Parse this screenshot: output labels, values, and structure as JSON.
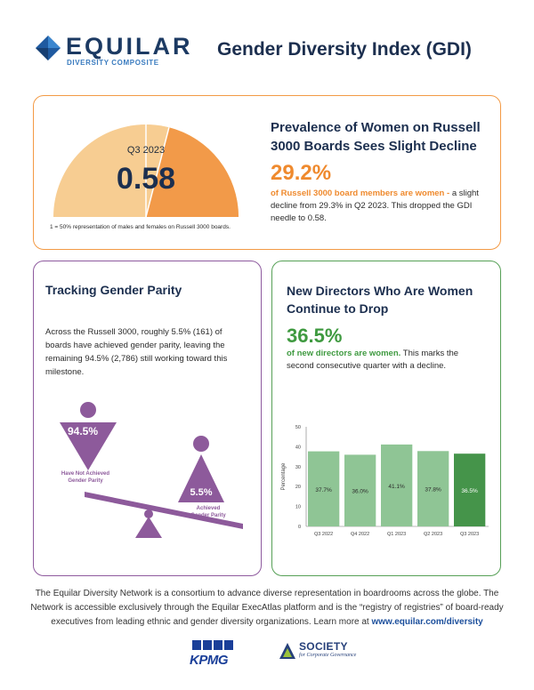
{
  "header": {
    "logo_word": "EQUILAR",
    "logo_sub": "DIVERSITY COMPOSITE",
    "title": "Gender Diversity Index  (GDI)"
  },
  "gdi": {
    "quarter": "Q3 2023",
    "value": "0.58",
    "gauge_fraction": 0.58,
    "caption": "1 = 50% representation of males and females on Russell 3000 boards.",
    "heading": "Prevalence of Women on Russell 3000 Boards Sees Slight Decline",
    "percent": "29.2%",
    "highlight": "of Russell 3000 board members are women",
    "dash": " -",
    "body": "a slight decline from 29.3% in Q2 2023. This dropped the GDI needle to 0.58.",
    "colors": {
      "dark": "#f29a49",
      "light": "#f7cd92"
    }
  },
  "parity": {
    "heading": "Tracking Gender Parity",
    "body": "Across the Russell 3000, roughly 5.5% (161) of boards have achieved gender parity, leaving the remaining 94.5% (2,786) still working toward this milestone.",
    "not_achieved_pct": "94.5%",
    "not_achieved_label_1": "Have Not Achieved",
    "not_achieved_label_2": "Gender Parity",
    "achieved_pct": "5.5%",
    "achieved_label_1": "Achieved",
    "achieved_label_2": "Gender Parity",
    "colors": {
      "purple": "#8d5a9b"
    }
  },
  "new_directors": {
    "heading": "New Directors Who Are Women Continue to Drop",
    "percent": "36.5%",
    "highlight": "of new directors are women.",
    "body": " This marks the second consecutive quarter with a decline."
  },
  "chart_data": {
    "type": "bar",
    "categories": [
      "Q3 2022",
      "Q4 2022",
      "Q1 2023",
      "Q2 2023",
      "Q3 2023"
    ],
    "values": [
      37.7,
      36.0,
      41.1,
      37.8,
      36.5
    ],
    "value_labels": [
      "37.7%",
      "36.0%",
      "41.1%",
      "37.8%",
      "36.5%"
    ],
    "ylabel": "Percentage",
    "ylim": [
      0,
      50
    ],
    "yticks": [
      0,
      10,
      20,
      30,
      40,
      50
    ],
    "colors": {
      "bar": "#8fc595",
      "highlight": "#45944a"
    },
    "grid": false
  },
  "footer": {
    "text": "The Equilar Diversity Network is a consortium to advance diverse representation in boardrooms across the globe. The Network is accessible exclusively through the Equilar ExecAtlas platform and is the “registry of registries” of board-ready executives from leading ethnic and gender diversity organizations. Learn more at ",
    "link": "www.equilar.com/diversity",
    "partner_1": "KPMG",
    "partner_2": "SOCIETY",
    "partner_2_sub": "for Corporate Governance"
  }
}
